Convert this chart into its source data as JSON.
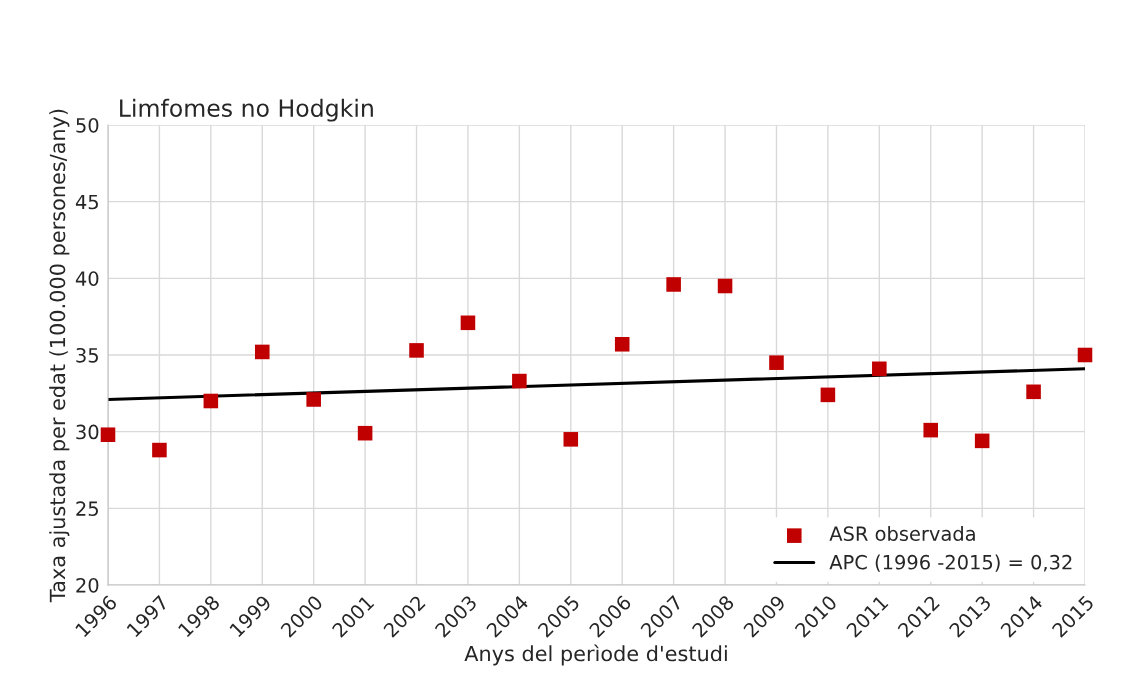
{
  "chart_data": {
    "type": "scatter",
    "title": "Limfomes no Hodgkin",
    "xlabel": "Anys del perìode d'estudi",
    "ylabel": "Taxa ajustada per edat (100.000 persones/any)",
    "x": [
      1996,
      1997,
      1998,
      1999,
      2000,
      2001,
      2002,
      2003,
      2004,
      2005,
      2006,
      2007,
      2008,
      2009,
      2010,
      2011,
      2012,
      2013,
      2014,
      2015
    ],
    "series": [
      {
        "name": "ASR observada",
        "color": "#c00000",
        "marker": "square",
        "values": [
          29.8,
          28.8,
          32.0,
          35.2,
          32.1,
          29.9,
          35.3,
          37.1,
          33.3,
          29.5,
          35.7,
          39.6,
          39.5,
          34.5,
          32.4,
          34.1,
          30.1,
          29.4,
          32.6,
          35.0
        ]
      },
      {
        "name": "APC (1996 -2015) = 0,32",
        "type": "line",
        "color": "#000000",
        "marker": "none",
        "line_style": "solid",
        "x": [
          1996,
          2015
        ],
        "values": [
          32.1,
          34.1
        ]
      }
    ],
    "xlim": [
      1996,
      2015
    ],
    "xticks": [
      1996,
      1997,
      1998,
      1999,
      2000,
      2001,
      2002,
      2003,
      2004,
      2005,
      2006,
      2007,
      2008,
      2009,
      2010,
      2011,
      2012,
      2013,
      2014,
      2015
    ],
    "ylim": [
      20,
      50
    ],
    "yticks": [
      20,
      25,
      30,
      35,
      40,
      45,
      50
    ],
    "grid": true,
    "legend": "bottom right"
  }
}
